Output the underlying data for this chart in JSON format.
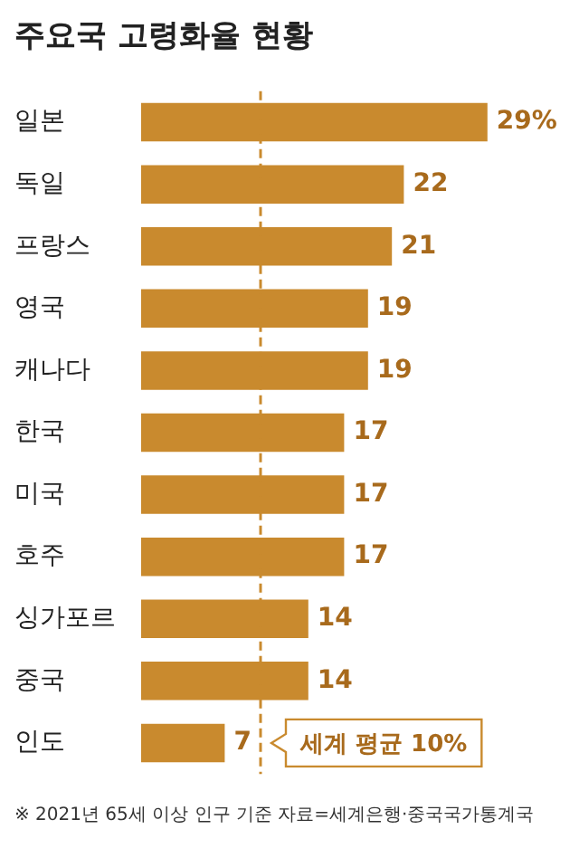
{
  "chart_data": {
    "type": "bar",
    "orientation": "horizontal",
    "title": "주요국 고령화율 현황",
    "categories": [
      "일본",
      "독일",
      "프랑스",
      "영국",
      "캐나다",
      "한국",
      "미국",
      "호주",
      "싱가포르",
      "중국",
      "인도"
    ],
    "values": [
      29,
      22,
      21,
      19,
      19,
      17,
      17,
      17,
      14,
      14,
      7
    ],
    "value_labels": [
      "29%",
      "22",
      "21",
      "19",
      "19",
      "17",
      "17",
      "17",
      "14",
      "14",
      "7"
    ],
    "color": "#c98a2e",
    "legend": false,
    "ref_lines": [
      {
        "axis": "x",
        "value": 10,
        "label": "세계 평균 10%",
        "color": "#c98a2e",
        "line_style": "dashed"
      }
    ],
    "annotations": [
      "※ 2021년 65세 이상 인구 기준 자료=세계은행·중국국가통계국"
    ]
  }
}
